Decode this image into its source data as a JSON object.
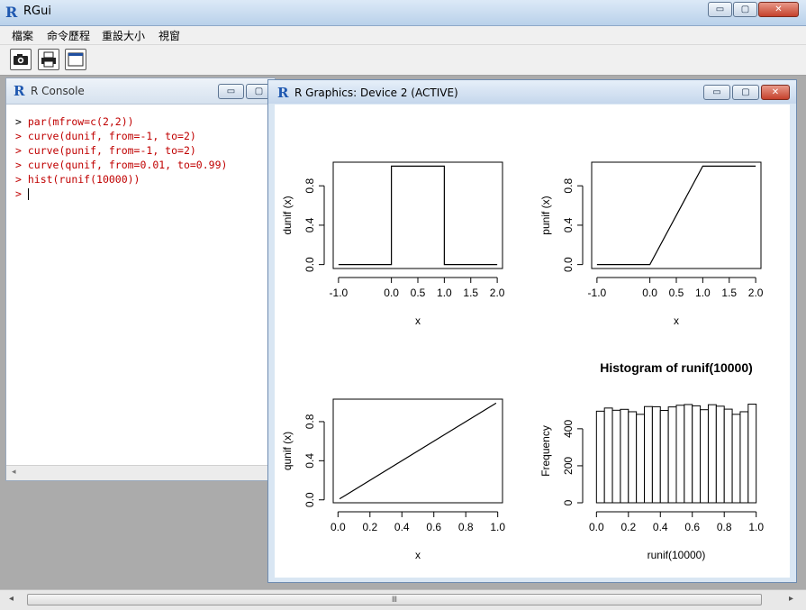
{
  "app": {
    "title": "RGui",
    "logo": "R"
  },
  "window_controls": {
    "minimize": "▭",
    "restore": "▢",
    "close": "✕"
  },
  "menu": [
    "檔案",
    "命令歷程",
    "重設大小",
    "視窗"
  ],
  "toolbar": {
    "buttons": [
      {
        "icon": "camera-icon",
        "glyph": "📷"
      },
      {
        "icon": "printer-icon",
        "glyph": "🖶"
      },
      {
        "icon": "window-icon",
        "glyph": "▭"
      }
    ]
  },
  "console": {
    "title": "R Console",
    "lines": [
      {
        "prompt": ">",
        "text": " par(mfrow=c(2,2))"
      },
      {
        "prompt": ">",
        "text": " curve(dunif, from=-1, to=2)"
      },
      {
        "prompt": ">",
        "text": " curve(punif, from=-1, to=2)"
      },
      {
        "prompt": ">",
        "text": " curve(qunif, from=0.01, to=0.99)"
      },
      {
        "prompt": ">",
        "text": " hist(runif(10000))"
      }
    ],
    "current_prompt": ">"
  },
  "graphics": {
    "title": "R Graphics: Device 2 (ACTIVE)"
  },
  "chart_data": [
    {
      "type": "line",
      "name": "dunif",
      "xlabel": "x",
      "ylabel": "dunif (x)",
      "xlim": [
        -1.1,
        2.1
      ],
      "ylim": [
        -0.04,
        1.04
      ],
      "xticks": [
        "-1.0",
        "0.0",
        "0.5",
        "1.0",
        "1.5",
        "2.0"
      ],
      "xtick_values": [
        -1.0,
        0.0,
        0.5,
        1.0,
        1.5,
        2.0
      ],
      "yticks": [
        "0.0",
        "0.4",
        "0.8"
      ],
      "ytick_values": [
        0.0,
        0.4,
        0.8
      ],
      "x": [
        -1.0,
        0.0,
        0.0,
        1.0,
        1.0,
        2.0
      ],
      "y": [
        0,
        0,
        1,
        1,
        0,
        0
      ]
    },
    {
      "type": "line",
      "name": "punif",
      "xlabel": "x",
      "ylabel": "punif (x)",
      "xlim": [
        -1.1,
        2.1
      ],
      "ylim": [
        -0.04,
        1.04
      ],
      "xticks": [
        "-1.0",
        "0.0",
        "0.5",
        "1.0",
        "1.5",
        "2.0"
      ],
      "xtick_values": [
        -1.0,
        0.0,
        0.5,
        1.0,
        1.5,
        2.0
      ],
      "yticks": [
        "0.0",
        "0.4",
        "0.8"
      ],
      "ytick_values": [
        0.0,
        0.4,
        0.8
      ],
      "x": [
        -1.0,
        0.0,
        1.0,
        2.0
      ],
      "y": [
        0,
        0,
        1,
        1
      ]
    },
    {
      "type": "line",
      "name": "qunif",
      "xlabel": "x",
      "ylabel": "qunif (x)",
      "xlim": [
        -0.03,
        1.03
      ],
      "ylim": [
        -0.03,
        1.03
      ],
      "xticks": [
        "0.0",
        "0.2",
        "0.4",
        "0.6",
        "0.8",
        "1.0"
      ],
      "xtick_values": [
        0.0,
        0.2,
        0.4,
        0.6,
        0.8,
        1.0
      ],
      "yticks": [
        "0.0",
        "0.4",
        "0.8"
      ],
      "ytick_values": [
        0.0,
        0.4,
        0.8
      ],
      "x": [
        0.01,
        0.99
      ],
      "y": [
        0.01,
        0.99
      ]
    },
    {
      "type": "bar",
      "name": "histogram",
      "title": "Histogram of runif(10000)",
      "xlabel": "runif(10000)",
      "ylabel": "Frequency",
      "xlim": [
        -0.03,
        1.03
      ],
      "ylim": [
        0,
        560
      ],
      "xticks": [
        "0.0",
        "0.2",
        "0.4",
        "0.6",
        "0.8",
        "1.0"
      ],
      "xtick_values": [
        0.0,
        0.2,
        0.4,
        0.6,
        0.8,
        1.0
      ],
      "yticks": [
        "0",
        "200",
        "400"
      ],
      "ytick_values": [
        0,
        200,
        400
      ],
      "bin_edges": [
        0.0,
        0.05,
        0.1,
        0.15,
        0.2,
        0.25,
        0.3,
        0.35,
        0.4,
        0.45,
        0.5,
        0.55,
        0.6,
        0.65,
        0.7,
        0.75,
        0.8,
        0.85,
        0.9,
        0.95,
        1.0
      ],
      "values": [
        495,
        512,
        500,
        505,
        492,
        478,
        520,
        519,
        499,
        518,
        527,
        531,
        524,
        503,
        530,
        522,
        506,
        478,
        492,
        533
      ]
    }
  ]
}
